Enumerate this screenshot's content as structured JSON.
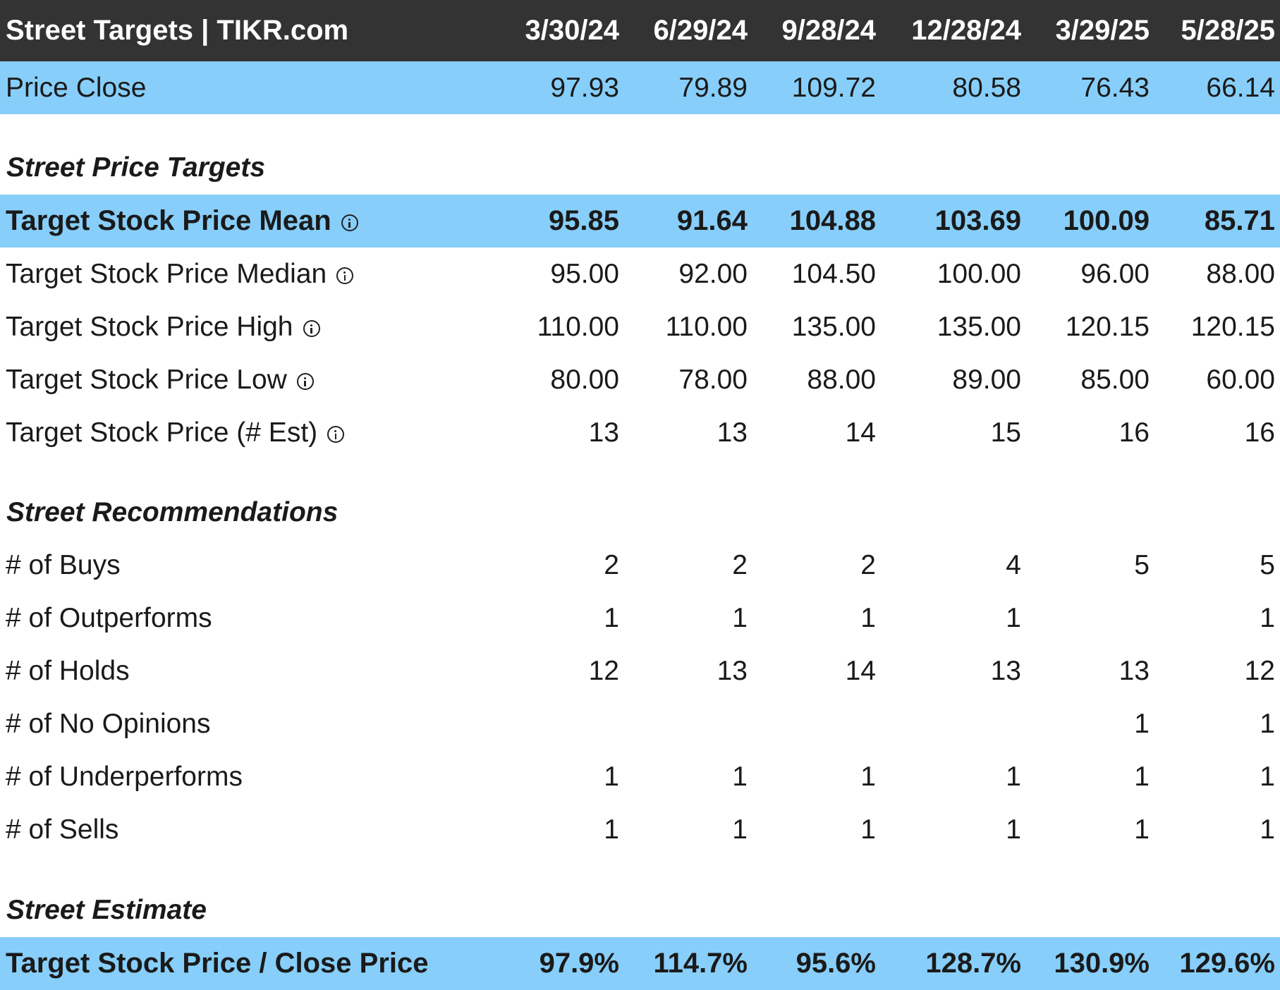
{
  "header": {
    "title": "Street Targets | TIKR.com",
    "dates": [
      "3/30/24",
      "6/29/24",
      "9/28/24",
      "12/28/24",
      "3/29/25",
      "5/28/25"
    ]
  },
  "price_close": {
    "label": "Price Close",
    "values": [
      "97.93",
      "79.89",
      "109.72",
      "80.58",
      "76.43",
      "66.14"
    ]
  },
  "sections": {
    "targets": "Street Price Targets",
    "recommendations": "Street Recommendations",
    "estimate": "Street Estimate"
  },
  "targets": [
    {
      "label": "Target Stock Price Mean",
      "values": [
        "95.85",
        "91.64",
        "104.88",
        "103.69",
        "100.09",
        "85.71"
      ]
    },
    {
      "label": "Target Stock Price Median",
      "values": [
        "95.00",
        "92.00",
        "104.50",
        "100.00",
        "96.00",
        "88.00"
      ]
    },
    {
      "label": "Target Stock Price High",
      "values": [
        "110.00",
        "110.00",
        "135.00",
        "135.00",
        "120.15",
        "120.15"
      ]
    },
    {
      "label": "Target Stock Price Low",
      "values": [
        "80.00",
        "78.00",
        "88.00",
        "89.00",
        "85.00",
        "60.00"
      ]
    },
    {
      "label": "Target Stock Price (# Est)",
      "values": [
        "13",
        "13",
        "14",
        "15",
        "16",
        "16"
      ]
    }
  ],
  "recommendations": [
    {
      "label": "# of Buys",
      "values": [
        "2",
        "2",
        "2",
        "4",
        "5",
        "5"
      ]
    },
    {
      "label": "# of Outperforms",
      "values": [
        "1",
        "1",
        "1",
        "1",
        "",
        "1"
      ]
    },
    {
      "label": "# of Holds",
      "values": [
        "12",
        "13",
        "14",
        "13",
        "13",
        "12"
      ]
    },
    {
      "label": "# of No Opinions",
      "values": [
        "",
        "",
        "",
        "",
        "1",
        "1"
      ]
    },
    {
      "label": "# of Underperforms",
      "values": [
        "1",
        "1",
        "1",
        "1",
        "1",
        "1"
      ]
    },
    {
      "label": "# of Sells",
      "values": [
        "1",
        "1",
        "1",
        "1",
        "1",
        "1"
      ]
    }
  ],
  "estimate": {
    "label": "Target Stock Price / Close Price",
    "values": [
      "97.9%",
      "114.7%",
      "95.6%",
      "128.7%",
      "130.9%",
      "129.6%"
    ]
  }
}
